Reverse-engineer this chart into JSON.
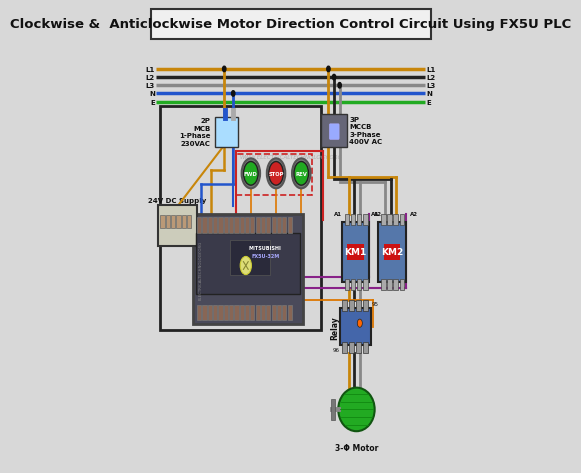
{
  "title": "Clockwise &  Anticlockwise Motor Direction Control Circuit Using FX5U PLC",
  "title_fontsize": 9.5,
  "bg_color": "#d8d8d8",
  "watermark": "WWW.ELECTRICALTECHNOLOGY.ORG",
  "bus_colors": {
    "L1": "#c8860a",
    "L2": "#222222",
    "L3": "#888888",
    "N": "#2255cc",
    "E": "#22aa22"
  },
  "bus_y": {
    "L1": 0.868,
    "L2": 0.85,
    "L3": 0.832,
    "N": 0.814,
    "E": 0.796
  }
}
